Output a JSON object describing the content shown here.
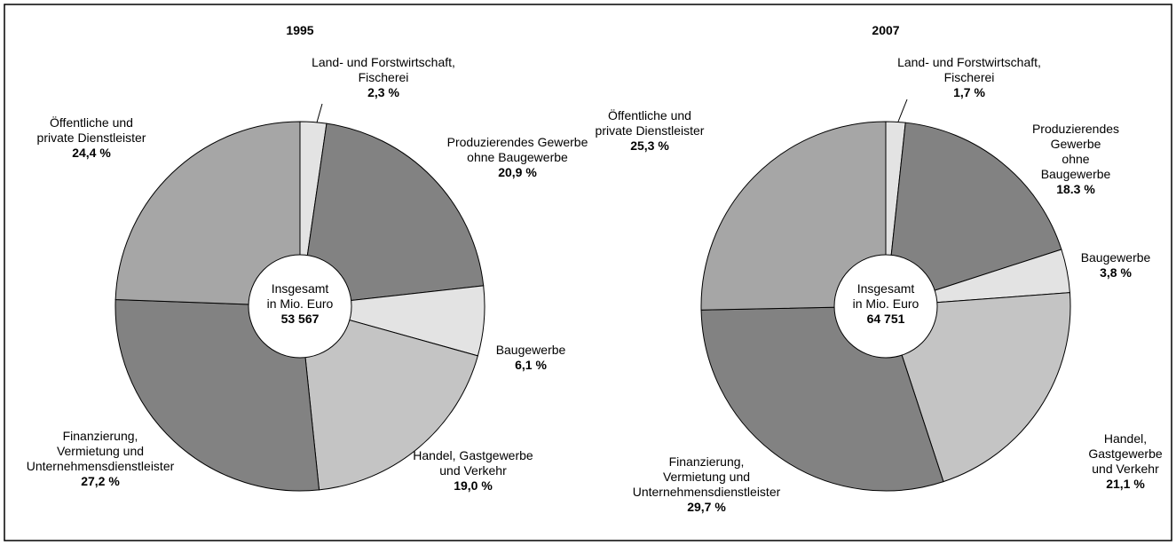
{
  "chart_data": [
    {
      "type": "pie",
      "title": "1995",
      "categories": [
        "Land- und Forstwirtschaft,\nFischerei",
        "Produzierendes Gewerbe\nohne Baugewerbe",
        "Baugewerbe",
        "Handel, Gastgewerbe\nund Verkehr",
        "Finanzierung,\nVermietung und\nUnternehmensdienstleister",
        "Öffentliche und\nprivate Dienstleister"
      ],
      "values": [
        2.3,
        20.9,
        6.1,
        19.0,
        27.2,
        24.4
      ],
      "value_labels": [
        "2,3 %",
        "20,9 %",
        "6,1 %",
        "19,0 %",
        "27,2 %",
        "24,4 %"
      ],
      "colors": [
        "#e3e3e3",
        "#828282",
        "#e3e3e3",
        "#c4c4c4",
        "#828282",
        "#a6a6a6"
      ],
      "center_label": "Insgesamt\nin Mio. Euro",
      "center_value": "53 567"
    },
    {
      "type": "pie",
      "title": "2007",
      "categories": [
        "Land- und Forstwirtschaft,\nFischerei",
        "Produzierendes Gewerbe\nohne Baugewerbe",
        "Baugewerbe",
        "Handel, Gastgewerbe\nund Verkehr",
        "Finanzierung,\nVermietung und\nUnternehmensdienstleister",
        "Öffentliche und\nprivate Dienstleister"
      ],
      "values": [
        1.7,
        18.3,
        3.8,
        21.1,
        29.7,
        25.3
      ],
      "value_labels": [
        "1,7 %",
        "18.3 %",
        "3,8 %",
        "21,1 %",
        "29,7 %",
        "25,3 %"
      ],
      "colors": [
        "#e3e3e3",
        "#828282",
        "#e3e3e3",
        "#c4c4c4",
        "#828282",
        "#a6a6a6"
      ],
      "center_label": "Insgesamt\nin Mio. Euro",
      "center_value": "64 751"
    }
  ]
}
